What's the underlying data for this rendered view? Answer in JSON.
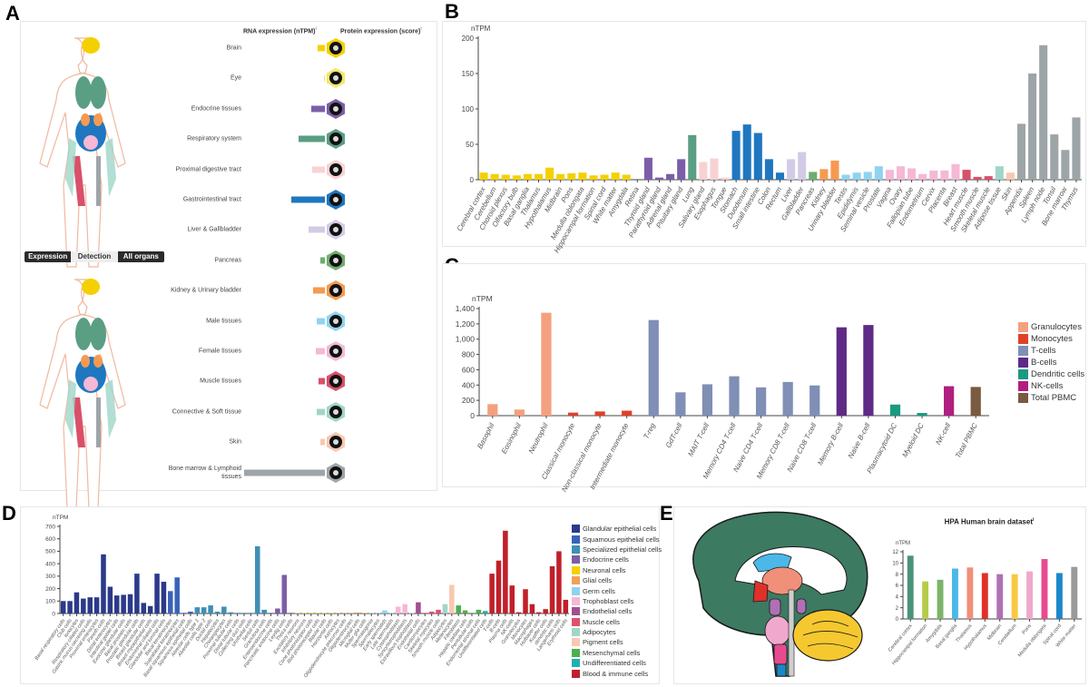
{
  "panels": {
    "a": "A",
    "b": "B",
    "c": "C",
    "d": "D",
    "e": "E"
  },
  "panel_a": {
    "rna_header": "RNA expression (nTPM)",
    "protein_header": "Protein expression (score)",
    "info_mark": "i",
    "toggle": {
      "options": [
        "Expression",
        "Detection",
        "All organs"
      ],
      "selected": "Detection"
    },
    "rna_max": 190,
    "rows": [
      {
        "label": "Brain",
        "rna": 17,
        "color": "#f5d000",
        "icon": "brain-icon"
      },
      {
        "label": "Eye",
        "rna": 2,
        "color": "#f5e66a",
        "icon": "eye-icon"
      },
      {
        "label": "Endocrine tissues",
        "rna": 31,
        "color": "#7b5ea7",
        "icon": "thyroid-icon"
      },
      {
        "label": "Respiratory system",
        "rna": 63,
        "color": "#5a9e83",
        "icon": "lung-icon"
      },
      {
        "label": "Proximal digestive tract",
        "rna": 30,
        "color": "#f8d2d2",
        "icon": "tooth-icon"
      },
      {
        "label": "Gastrointestinal tract",
        "rna": 78,
        "color": "#1f77c0",
        "icon": "stomach-icon"
      },
      {
        "label": "Liver & Gallbladder",
        "rna": 39,
        "color": "#d3cbe6",
        "icon": "liver-icon"
      },
      {
        "label": "Pancreas",
        "rna": 11,
        "color": "#6dae6d",
        "icon": "pancreas-icon"
      },
      {
        "label": "Kidney & Urinary bladder",
        "rna": 27,
        "color": "#f59a50",
        "icon": "kidney-icon"
      },
      {
        "label": "Male tissues",
        "rna": 19,
        "color": "#8fd3f0",
        "icon": "male-tissue-icon"
      },
      {
        "label": "Female tissues",
        "rna": 22,
        "color": "#f5b8d5",
        "icon": "uterus-icon"
      },
      {
        "label": "Muscle tissues",
        "rna": 14,
        "color": "#d9506a",
        "icon": "muscle-icon"
      },
      {
        "label": "Connective & Soft tissue",
        "rna": 19,
        "color": "#9fd6c8",
        "icon": "connective-tissue-icon"
      },
      {
        "label": "Skin",
        "rna": 10,
        "color": "#f8c8b0",
        "icon": "skin-icon"
      },
      {
        "label": "Bone marrow & Lymphoid tissues",
        "rna": 190,
        "color": "#9ea5a8",
        "icon": "lymph-node-icon"
      }
    ]
  },
  "chart_data": [
    {
      "id": "B",
      "type": "bar",
      "ylabel": "nTPM",
      "ylim": [
        0,
        200
      ],
      "yticks": [
        {
          "v": 0,
          "t": "0"
        },
        {
          "v": 50,
          "t": "50"
        },
        {
          "v": 100,
          "t": "100"
        },
        {
          "v": 150,
          "t": "150"
        },
        {
          "v": 200,
          "t": "200"
        }
      ],
      "palette": [
        "#f5d000",
        "#7b5ea7",
        "#5a9e83",
        "#f8d2d2",
        "#1f77c0",
        "#d3cbe6",
        "#6dae6d",
        "#f59a50",
        "#8fd3f0",
        "#f5b8d5",
        "#d9506a",
        "#9fd6c8",
        "#f8c8b0",
        "#9ea5a8"
      ],
      "bars": [
        [
          "Cerebral cortex",
          10,
          0
        ],
        [
          "Cerebellum",
          8,
          0
        ],
        [
          "Choroid plexus",
          7,
          0
        ],
        [
          "Olfactory bulb",
          6,
          0
        ],
        [
          "Basal ganglia",
          8,
          0
        ],
        [
          "Thalamus",
          8,
          0
        ],
        [
          "Hypothalamus",
          17,
          0
        ],
        [
          "Midbrain",
          8,
          0
        ],
        [
          "Pons",
          9,
          0
        ],
        [
          "Medulla oblongata",
          10,
          0
        ],
        [
          "Hippocampal formation",
          6,
          0
        ],
        [
          "Spinal cord",
          7,
          0
        ],
        [
          "White matter",
          10,
          0
        ],
        [
          "Amygdala",
          7,
          0
        ],
        [
          "Retina",
          0,
          0
        ],
        [
          "Thyroid gland",
          31,
          1
        ],
        [
          "Parathyroid gland",
          3,
          1
        ],
        [
          "Adrenal gland",
          8,
          1
        ],
        [
          "Pituitary gland",
          29,
          1
        ],
        [
          "Lung",
          63,
          2
        ],
        [
          "Salivary gland",
          25,
          3
        ],
        [
          "Esophagus",
          30,
          3
        ],
        [
          "Tongue",
          3,
          3
        ],
        [
          "Stomach",
          69,
          4
        ],
        [
          "Duodenum",
          78,
          4
        ],
        [
          "Small intestine",
          66,
          4
        ],
        [
          "Colon",
          29,
          4
        ],
        [
          "Rectum",
          10,
          4
        ],
        [
          "Liver",
          29,
          5
        ],
        [
          "Gallbladder",
          39,
          5
        ],
        [
          "Pancreas",
          11,
          6
        ],
        [
          "Kidney",
          15,
          7
        ],
        [
          "Urinary bladder",
          27,
          7
        ],
        [
          "Testis",
          7,
          8
        ],
        [
          "Epididymis",
          10,
          8
        ],
        [
          "Seminal vesicle",
          11,
          8
        ],
        [
          "Prostate",
          19,
          8
        ],
        [
          "Vagina",
          14,
          9
        ],
        [
          "Ovary",
          19,
          9
        ],
        [
          "Fallopian tube",
          16,
          9
        ],
        [
          "Endometrium",
          8,
          9
        ],
        [
          "Cervix",
          13,
          9
        ],
        [
          "Placenta",
          13,
          9
        ],
        [
          "Breast",
          22,
          9
        ],
        [
          "Heart muscle",
          14,
          10
        ],
        [
          "Smooth muscle",
          4,
          10
        ],
        [
          "Skeletal muscle",
          5,
          10
        ],
        [
          "Adipose tissue",
          19,
          11
        ],
        [
          "Skin",
          10,
          12
        ],
        [
          "Appendix",
          79,
          13
        ],
        [
          "Spleen",
          150,
          13
        ],
        [
          "Lymph node",
          190,
          13
        ],
        [
          "Tonsil",
          64,
          13
        ],
        [
          "Bone marrow",
          42,
          13
        ],
        [
          "Thymus",
          88,
          13
        ]
      ],
      "legend": []
    },
    {
      "id": "C",
      "type": "bar",
      "ylabel": "nTPM",
      "ylim": [
        0,
        1400
      ],
      "legend_position": "right",
      "yticks": [
        {
          "v": 0,
          "t": "0"
        },
        {
          "v": 200,
          "t": "200"
        },
        {
          "v": 400,
          "t": "400"
        },
        {
          "v": 600,
          "t": "600"
        },
        {
          "v": 800,
          "t": "800"
        },
        {
          "v": 1000,
          "t": "1,000"
        },
        {
          "v": 1200,
          "t": "1,200"
        },
        {
          "v": 1400,
          "t": "1,400"
        }
      ],
      "palette": [
        "#f4a07f",
        "#e0402a",
        "#7f8fb5",
        "#5e2a85",
        "#1a9a80",
        "#b01f7f",
        "#7a5a40"
      ],
      "legend": [
        "Granulocytes",
        "Monocytes",
        "T-cells",
        "B-cells",
        "Dendritic cells",
        "NK-cells",
        "Total PBMC"
      ],
      "bars": [
        [
          "Basophil",
          150,
          0
        ],
        [
          "Eosinophil",
          80,
          0
        ],
        [
          "Neutrophil",
          1345,
          0
        ],
        [
          "Classical monocyte",
          40,
          1
        ],
        [
          "Non-classical monocyte",
          55,
          1
        ],
        [
          "Intermediate monocyte",
          65,
          1
        ],
        [
          "T-reg",
          1250,
          2
        ],
        [
          "GdT-cell",
          305,
          2
        ],
        [
          "MAIT T-cell",
          410,
          2
        ],
        [
          "Memory CD4 T-cell",
          515,
          2
        ],
        [
          "Naive CD4 T-cell",
          370,
          2
        ],
        [
          "Memory CD8 T-cell",
          440,
          2
        ],
        [
          "Naive CD8 T-cell",
          395,
          2
        ],
        [
          "Memory B-cell",
          1155,
          3
        ],
        [
          "Naive B-cell",
          1185,
          3
        ],
        [
          "Plasmacytoid DC",
          145,
          4
        ],
        [
          "Myeloid DC",
          35,
          4
        ],
        [
          "NK-cell",
          385,
          5
        ],
        [
          "Total PBMC",
          375,
          6
        ]
      ]
    },
    {
      "id": "D",
      "type": "bar",
      "ylabel": "nTPM",
      "ylim": [
        0,
        700
      ],
      "legend_position": "right",
      "yticks": [
        {
          "v": 0,
          "t": "0"
        },
        {
          "v": 100,
          "t": "100"
        },
        {
          "v": 200,
          "t": "200"
        },
        {
          "v": 300,
          "t": "300"
        },
        {
          "v": 400,
          "t": "400"
        },
        {
          "v": 500,
          "t": "500"
        },
        {
          "v": 600,
          "t": "600"
        },
        {
          "v": 700,
          "t": "700"
        }
      ],
      "palette": [
        "#2b3a8a",
        "#3a63b8",
        "#3f8fb5",
        "#7b5ea7",
        "#f5d000",
        "#f0a05a",
        "#8fd3f0",
        "#f5b8d5",
        "#a0508f",
        "#e05070",
        "#9fd6c8",
        "#f8c8b0",
        "#4cb04c",
        "#20b0b0",
        "#c0202a"
      ],
      "legend": [
        "Glandular epithelial cells",
        "Squamous epithelial cells",
        "Specialized epithelial cells",
        "Endocrine cells",
        "Neuronal cells",
        "Glial cells",
        "Germ cells",
        "Trophoblast cells",
        "Endothelial cells",
        "Muscle cells",
        "Adipocytes",
        "Pigment cells",
        "Mesenchymal cells",
        "Undifferentiated cells",
        "Blood & immune cells"
      ],
      "bars": [
        [
          "Basal respiratory cells",
          100,
          0
        ],
        [
          "Club cells",
          100,
          0
        ],
        [
          "Ionocytes",
          170,
          0
        ],
        [
          "Respiratory ciliated cells",
          120,
          0
        ],
        [
          "Gastric mucus-secreting cells",
          130,
          0
        ],
        [
          "Proximal enterocytes",
          130,
          0
        ],
        [
          "Paneth cells",
          475,
          0
        ],
        [
          "Distal enterocytes",
          215,
          0
        ],
        [
          "Intestinal goblet cells",
          145,
          0
        ],
        [
          "Exocrine glandular cells",
          150,
          0
        ],
        [
          "Basal prostatic cells",
          155,
          0
        ],
        [
          "Prostatic glandular cells",
          320,
          0
        ],
        [
          "Breast glandular cells",
          85,
          0
        ],
        [
          "Breast myoepithelial cells",
          60,
          0
        ],
        [
          "Endometrial ciliated cells",
          320,
          0
        ],
        [
          "Glandular and luminal cells",
          255,
          0
        ],
        [
          "Basal keratinocytes",
          180,
          1
        ],
        [
          "Suprabasal keratinocytes",
          290,
          1
        ],
        [
          "Basal squamous epithelial cells",
          5,
          1
        ],
        [
          "Squamous epithelial cells",
          15,
          1
        ],
        [
          "Alveolar cells type 1",
          50,
          2
        ],
        [
          "Alveolar cells type 2",
          50,
          2
        ],
        [
          "Ductal cells",
          65,
          2
        ],
        [
          "Hepatocytes",
          15,
          2
        ],
        [
          "Cholangiocytes",
          55,
          2
        ],
        [
          "Proximal tubular cells",
          10,
          2
        ],
        [
          "Distal tubular cells",
          5,
          2
        ],
        [
          "Collecting duct cells",
          5,
          2
        ],
        [
          "Urothelial cells",
          5,
          2
        ],
        [
          "Sertoli cells",
          540,
          2
        ],
        [
          "Granulosa cells",
          30,
          2
        ],
        [
          "Enteroendocrine cells",
          5,
          3
        ],
        [
          "Pancreatic endocrine cells",
          40,
          3
        ],
        [
          "Leydig cells",
          310,
          3
        ],
        [
          "Theca cells",
          5,
          3
        ],
        [
          "Excitatory neurons",
          3,
          4
        ],
        [
          "Inhibitory neurons",
          3,
          4
        ],
        [
          "Cone photoreceptor cells",
          3,
          4
        ],
        [
          "Rod photoreceptor cells",
          3,
          4
        ],
        [
          "Bipolar cells",
          3,
          4
        ],
        [
          "Horizontal cells",
          3,
          4
        ],
        [
          "Astrocytes",
          3,
          5
        ],
        [
          "Oligodendrocyte precursor cells",
          3,
          5
        ],
        [
          "Oligodendrocytes",
          3,
          5
        ],
        [
          "Microglial cells",
          8,
          5
        ],
        [
          "Muller glia cells",
          3,
          5
        ],
        [
          "Spermatogonia",
          3,
          6
        ],
        [
          "Spermatocytes",
          3,
          6
        ],
        [
          "Early spermatids",
          25,
          6
        ],
        [
          "Late spermatids",
          5,
          6
        ],
        [
          "Cytotrophoblasts",
          55,
          7
        ],
        [
          "Syncytiotrophoblasts",
          75,
          7
        ],
        [
          "Extravillous trophoblasts",
          5,
          7
        ],
        [
          "Endothelial cells",
          90,
          8
        ],
        [
          "Cardiomyocytes",
          5,
          9
        ],
        [
          "Skeletal myocytes",
          15,
          9
        ],
        [
          "Smooth muscle cells",
          30,
          9
        ],
        [
          "Adipocytes",
          75,
          10
        ],
        [
          "Melanocytes",
          230,
          11
        ],
        [
          "Fibroblasts",
          65,
          12
        ],
        [
          "Hepatic stellate cells",
          25,
          12
        ],
        [
          "Peritubular cells",
          5,
          12
        ],
        [
          "Endometrial stromal cells",
          30,
          12
        ],
        [
          "Undifferentiated cells",
          20,
          13
        ],
        [
          "T-cells",
          320,
          14
        ],
        [
          "B-cells",
          425,
          14
        ],
        [
          "Plasma cells",
          665,
          14
        ],
        [
          "NK-cells",
          225,
          14
        ],
        [
          "Granulocytes",
          10,
          14
        ],
        [
          "Monocytes",
          195,
          14
        ],
        [
          "Macrophages",
          75,
          14
        ],
        [
          "Hofbauer cells",
          10,
          14
        ],
        [
          "Kupffer cells",
          35,
          14
        ],
        [
          "dendritic cells",
          380,
          14
        ],
        [
          "Langerhans cells",
          500,
          14
        ],
        [
          "Erythroid cells",
          110,
          14
        ]
      ]
    },
    {
      "id": "E",
      "type": "bar",
      "title": "HPA Human brain dataset",
      "ylabel": "nTPM",
      "ylim": [
        0,
        12
      ],
      "yticks": [
        {
          "v": 0,
          "t": "0"
        },
        {
          "v": 2,
          "t": "2"
        },
        {
          "v": 4,
          "t": "4"
        },
        {
          "v": 6,
          "t": "6"
        },
        {
          "v": 8,
          "t": "8"
        },
        {
          "v": 10,
          "t": "10"
        },
        {
          "v": 12,
          "t": "12"
        }
      ],
      "palette": [
        "#4a9478",
        "#b5cc4a",
        "#7cb36a",
        "#4cb8e8",
        "#f0907a",
        "#e0302a",
        "#b070b5",
        "#f8c840",
        "#f0a8cc",
        "#e84a90",
        "#1a88c8",
        "#9a9a9a"
      ],
      "legend": [],
      "bars": [
        [
          "Cerebral cortex",
          11.3,
          0
        ],
        [
          "Hippocampal formation",
          6.7,
          1
        ],
        [
          "Amygdala",
          7.0,
          2
        ],
        [
          "Basal ganglia",
          9.0,
          3
        ],
        [
          "Thalamus",
          9.2,
          4
        ],
        [
          "Hypothalamus",
          8.2,
          5
        ],
        [
          "Midbrain",
          8.0,
          6
        ],
        [
          "Cerebellum",
          8.0,
          7
        ],
        [
          "Pons",
          8.5,
          8
        ],
        [
          "Medulla oblongata",
          10.7,
          9
        ],
        [
          "Spinal cord",
          8.2,
          10
        ],
        [
          "White matter",
          9.3,
          11
        ]
      ]
    }
  ]
}
